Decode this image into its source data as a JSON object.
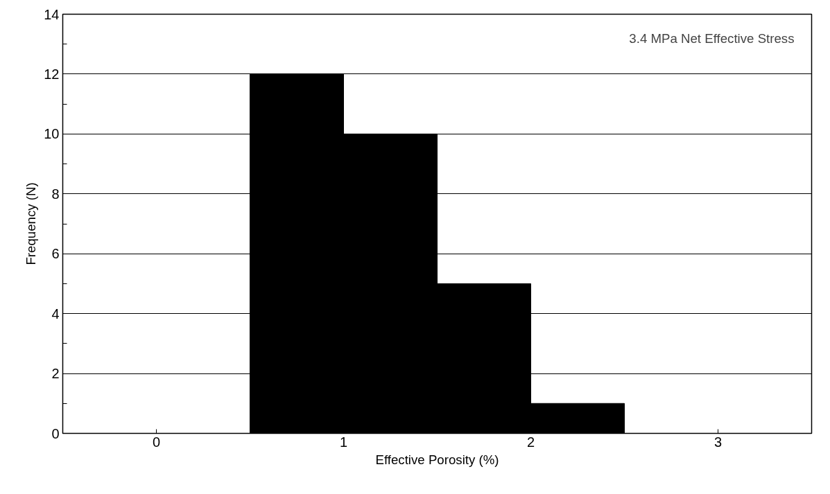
{
  "chart_data": {
    "type": "histogram",
    "xlabel": "Effective Porosity (%)",
    "ylabel": "Frequency (N)",
    "annotations": [
      "3.4 MPa Net Effective Stress"
    ],
    "bins": [
      0.5,
      1,
      1.5,
      2,
      2.5
    ],
    "values": [
      12,
      10,
      5,
      1
    ],
    "color": "#000000",
    "xlim": [
      -0.5,
      3.5
    ],
    "ylim": [
      0,
      14
    ],
    "xticks": [
      0,
      {
        "value": 0.5,
        "label": null
      },
      1,
      {
        "value": 1.5,
        "label": null
      },
      2,
      {
        "value": 2.5,
        "label": null
      },
      3
    ],
    "yticks": [
      0,
      {
        "value": 1,
        "label": null
      },
      2,
      {
        "value": 3,
        "label": null
      },
      4,
      {
        "value": 5,
        "label": null
      },
      6,
      {
        "value": 7,
        "label": null
      },
      8,
      {
        "value": 9,
        "label": null
      },
      10,
      {
        "value": 11,
        "label": null
      },
      12,
      {
        "value": 13,
        "label": null
      },
      14
    ],
    "grid": "y"
  }
}
